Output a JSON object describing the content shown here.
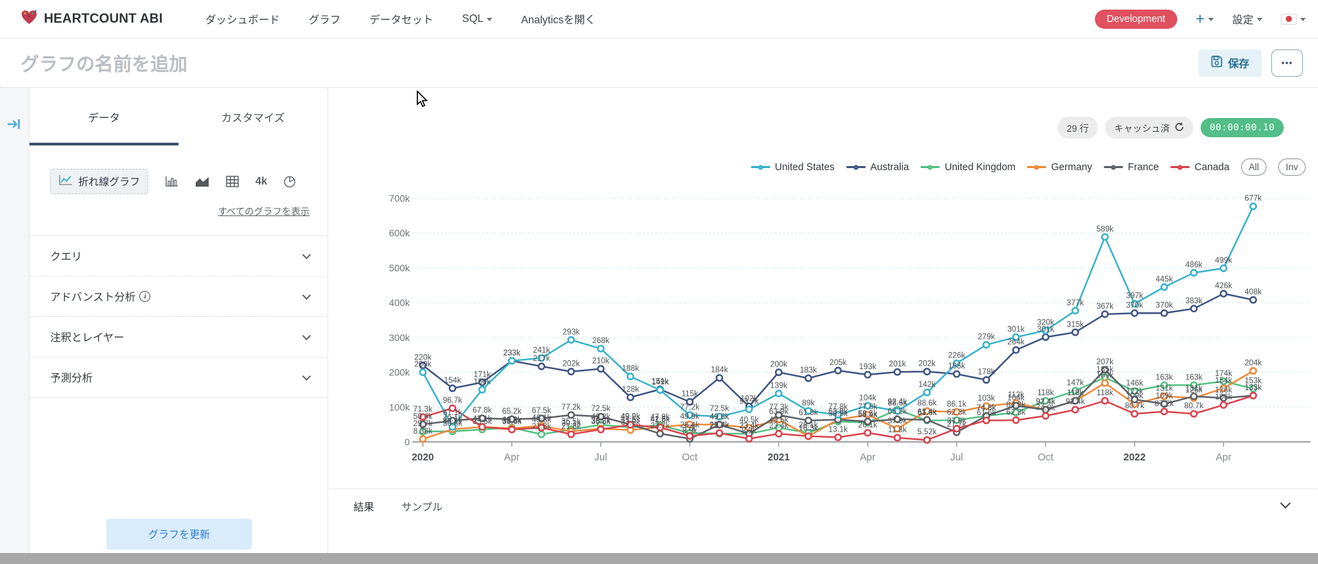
{
  "navbar": {
    "logo_text": "HEARTCOUNT ABI",
    "items": [
      {
        "label": "ダッシュボード",
        "caret": false
      },
      {
        "label": "グラフ",
        "caret": false
      },
      {
        "label": "データセット",
        "caret": false
      },
      {
        "label": "SQL",
        "caret": true
      },
      {
        "label": "Analyticsを開く",
        "caret": false
      }
    ],
    "env_badge": "Development",
    "plus_label": "+",
    "settings_label": "設定"
  },
  "title_bar": {
    "title_placeholder": "グラフの名前を追加",
    "save_label": "保存",
    "more_label": "•••"
  },
  "sidebar": {
    "tabs": [
      {
        "label": "データ",
        "active": true
      },
      {
        "label": "カスタマイズ",
        "active": false
      }
    ],
    "chart_type_selected": "折れ線グラフ",
    "chart_type_4k_label": "4k",
    "show_all_link": "すべてのグラフを表示",
    "sections": [
      {
        "label": "クエリ",
        "info": false
      },
      {
        "label": "アドバンスト分析",
        "info": true
      },
      {
        "label": "注釈とレイヤー",
        "info": false
      },
      {
        "label": "予測分析",
        "info": false
      }
    ],
    "update_button": "グラフを更新"
  },
  "chart_header": {
    "rows_badge": "29 行",
    "cache_badge": "キャッシュ済",
    "timer_badge": "00:00:00.10",
    "filter_pills": [
      "All",
      "Inv"
    ]
  },
  "chart_data": {
    "type": "line",
    "n_points": 29,
    "x_range_note": "monthly Jan 2020 - May 2022",
    "x_tick_positions": [
      0,
      3,
      6,
      9,
      12,
      15,
      18,
      21,
      24,
      27
    ],
    "x_tick_labels": [
      "2020",
      "Apr",
      "Jul",
      "Oct",
      "2021",
      "Apr",
      "Jul",
      "Oct",
      "2022",
      "Apr"
    ],
    "x_tick_major": [
      true,
      false,
      false,
      false,
      true,
      false,
      false,
      false,
      true,
      false
    ],
    "y_ticks": [
      "0",
      "100k",
      "200k",
      "300k",
      "400k",
      "500k",
      "600k",
      "700k"
    ],
    "ylim_k": [
      0,
      700
    ],
    "unit": "k",
    "grid": "horizontal-dashed",
    "legend_position": "top-right",
    "series": [
      {
        "name": "United States",
        "color": "#35b2ca",
        "values": [
          200,
          43.1,
          150,
          233,
          241,
          293,
          268,
          188,
          149,
          77.2,
          72.5,
          93.7,
          139,
          89,
          77.8,
          104,
          88.6,
          142,
          226,
          279,
          301,
          320,
          377,
          589,
          397,
          445,
          486,
          499,
          677
        ]
      },
      {
        "name": "Australia",
        "color": "#3d5382",
        "values": [
          220,
          154,
          171,
          233,
          217,
          202,
          210,
          128,
          151,
          115,
          184,
          102,
          200,
          183,
          205,
          193,
          201,
          202,
          195,
          178,
          264,
          301,
          315,
          367,
          370,
          370,
          383,
          426,
          408
        ]
      },
      {
        "name": "United Kingdom",
        "color": "#50c081",
        "values": [
          29.7,
          30.3,
          35.6,
          40.8,
          21.8,
          35.5,
          49.2,
          41.5,
          47.9,
          25.4,
          23.7,
          23.4,
          40.5,
          26.1,
          58.5,
          55.4,
          92.4,
          61.6,
          62.3,
          74.8,
          84.3,
          118,
          147,
          185,
          146,
          163,
          163,
          174,
          153
        ]
      },
      {
        "name": "Germany",
        "color": "#ef8838",
        "values": [
          8.38,
          36.2,
          43.1,
          38.8,
          46.1,
          30.1,
          38.2,
          33.9,
          42.6,
          49.9,
          49.6,
          40.5,
          63.9,
          16.3,
          63.9,
          77.8,
          37.9,
          88.6,
          86.1,
          103,
          112,
          92.4,
          118,
          169,
          109,
          131,
          126,
          154,
          204
        ]
      },
      {
        "name": "France",
        "color": "#5a6066",
        "values": [
          50.4,
          61.1,
          67.8,
          65.2,
          67.5,
          77.2,
          72.5,
          49.9,
          23.7,
          8.9,
          49.6,
          23.4,
          77.3,
          61.3,
          63.9,
          58.5,
          65.2,
          63.4,
          27.7,
          74.8,
          104,
          92.4,
          118,
          207,
          122,
          109,
          131,
          126,
          133
        ]
      },
      {
        "name": "Canada",
        "color": "#d9404a",
        "values": [
          71.3,
          96.7,
          43.1,
          35.6,
          40.8,
          21.8,
          35.5,
          49.2,
          41.5,
          17,
          25.4,
          8.9,
          23.4,
          16.3,
          13.1,
          26.1,
          11.8,
          5.52,
          37.9,
          61.6,
          62.3,
          74.8,
          92.4,
          118,
          80.7,
          87.2,
          80.7,
          106,
          133
        ]
      }
    ],
    "notable_labels": [
      "220k",
      "200k",
      "154k",
      "96.7k",
      "233k",
      "241k",
      "217k",
      "293k",
      "202k",
      "268k",
      "210k",
      "188k",
      "128k",
      "184k",
      "149k",
      "115k",
      "184k",
      "102k",
      "200k",
      "139k",
      "183k",
      "205k",
      "193k",
      "201k",
      "202k",
      "195k",
      "226k",
      "178k",
      "279k",
      "301k",
      "264k",
      "320k",
      "315k",
      "377k",
      "367k",
      "589k",
      "397k",
      "370k",
      "370k",
      "445k",
      "486k",
      "383k",
      "499k",
      "426k",
      "677k",
      "408k",
      "207k",
      "185k",
      "203k",
      "204k",
      "154k",
      "153k",
      "133k",
      "106k",
      "8.38k",
      "5.52k"
    ]
  },
  "bottom_tabs": {
    "results_label": "結果",
    "sample_label": "サンプル"
  }
}
